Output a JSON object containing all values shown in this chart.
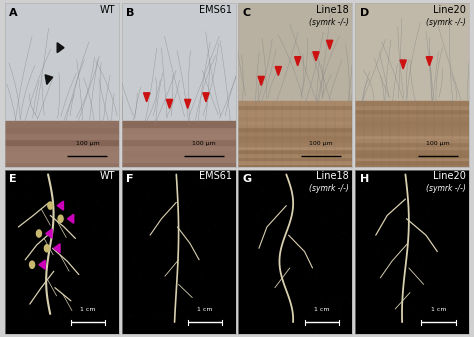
{
  "fig_width": 4.74,
  "fig_height": 3.37,
  "dpi": 100,
  "fig_bg": "#d0d0d0",
  "panels": [
    {
      "letter": "A",
      "label": "WT",
      "label2": null,
      "row": 0,
      "col": 0
    },
    {
      "letter": "B",
      "label": "EMS61",
      "label2": null,
      "row": 0,
      "col": 1
    },
    {
      "letter": "C",
      "label": "Line18",
      "label2": "(symrk -/-)",
      "row": 0,
      "col": 2
    },
    {
      "letter": "D",
      "label": "Line20",
      "label2": "(symrk -/-)",
      "row": 0,
      "col": 3
    },
    {
      "letter": "E",
      "label": "WT",
      "label2": null,
      "row": 1,
      "col": 0
    },
    {
      "letter": "F",
      "label": "EMS61",
      "label2": null,
      "row": 1,
      "col": 1
    },
    {
      "letter": "G",
      "label": "Line18",
      "label2": "(symrk -/-)",
      "row": 1,
      "col": 2
    },
    {
      "letter": "H",
      "label": "Line20",
      "label2": "(symrk -/-)",
      "row": 1,
      "col": 3
    }
  ],
  "top_bg": [
    "#c8ccd0",
    "#c8ccd0",
    "#b8b0a0",
    "#c0b8a8"
  ],
  "root_body_colors": [
    "#907060",
    "#907060",
    "#a08060",
    "#a08060"
  ],
  "bottom_bg": "#000000",
  "text_color_top": "#000000",
  "text_color_bottom": "#ffffff",
  "letter_fontsize": 8,
  "label_fontsize": 7,
  "sublabel_fontsize": 5.5,
  "scale_bar_top": "100 μm",
  "scale_bar_bottom": "1 cm",
  "arrow_black": "#111111",
  "arrow_red": "#cc1111",
  "arrow_magenta": "#cc00bb",
  "root_color_bottom": "#d8d0b0"
}
